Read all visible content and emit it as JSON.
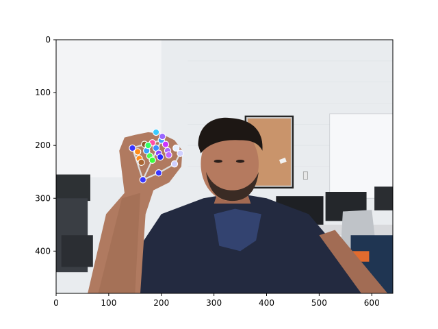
{
  "figure": {
    "image_width": 640,
    "image_height": 480,
    "x_ticks": [
      0,
      100,
      200,
      300,
      400,
      500,
      600
    ],
    "y_ticks": [
      0,
      100,
      200,
      300,
      400
    ],
    "xlim": [
      0,
      640
    ],
    "ylim": [
      480,
      0
    ],
    "y_axis_inverted": true
  },
  "scene": {
    "background": "office wall, corkboard, whiteboard, monitors",
    "subject": "person raising right hand with hand landmarks overlaid"
  },
  "hand_landmarks": {
    "points": [
      {
        "id": 0,
        "x": 165,
        "y": 265,
        "color": "#3a36ff"
      },
      {
        "id": 1,
        "x": 195,
        "y": 252,
        "color": "#3a36ff"
      },
      {
        "id": 2,
        "x": 225,
        "y": 235,
        "color": "#d0d0ff"
      },
      {
        "id": 3,
        "x": 236,
        "y": 215,
        "color": "#d0d0ff"
      },
      {
        "id": 4,
        "x": 228,
        "y": 205,
        "color": "#e6f0ff"
      },
      {
        "id": 5,
        "x": 145,
        "y": 205,
        "color": "#3a36ff"
      },
      {
        "id": 6,
        "x": 155,
        "y": 212,
        "color": "#ff8c1a"
      },
      {
        "id": 7,
        "x": 158,
        "y": 225,
        "color": "#ff8c1a"
      },
      {
        "id": 8,
        "x": 162,
        "y": 232,
        "color": "#aa6633"
      },
      {
        "id": 9,
        "x": 168,
        "y": 198,
        "color": "#8b5a2b"
      },
      {
        "id": 10,
        "x": 172,
        "y": 210,
        "color": "#3aa0ff"
      },
      {
        "id": 11,
        "x": 178,
        "y": 220,
        "color": "#4dff4d"
      },
      {
        "id": 12,
        "x": 183,
        "y": 228,
        "color": "#3aff3a"
      },
      {
        "id": 13,
        "x": 183,
        "y": 195,
        "color": "#ff4da6"
      },
      {
        "id": 14,
        "x": 190,
        "y": 205,
        "color": "#3a8dff"
      },
      {
        "id": 15,
        "x": 195,
        "y": 215,
        "color": "#8844ff"
      },
      {
        "id": 16,
        "x": 198,
        "y": 222,
        "color": "#2a2aff"
      },
      {
        "id": 17,
        "x": 200,
        "y": 190,
        "color": "#3aa0ff"
      },
      {
        "id": 18,
        "x": 208,
        "y": 198,
        "color": "#cc33ff"
      },
      {
        "id": 19,
        "x": 212,
        "y": 210,
        "color": "#aa66ff"
      },
      {
        "id": 20,
        "x": 214,
        "y": 218,
        "color": "#c266ff"
      },
      {
        "id": 21,
        "x": 175,
        "y": 200,
        "color": "#33ff66"
      },
      {
        "id": 22,
        "x": 190,
        "y": 175,
        "color": "#3acbff"
      },
      {
        "id": 23,
        "x": 202,
        "y": 183,
        "color": "#9966ff"
      }
    ],
    "connections": [
      [
        0,
        1
      ],
      [
        1,
        2
      ],
      [
        2,
        3
      ],
      [
        3,
        4
      ],
      [
        0,
        5
      ],
      [
        5,
        6
      ],
      [
        6,
        7
      ],
      [
        7,
        8
      ],
      [
        5,
        9
      ],
      [
        9,
        10
      ],
      [
        10,
        11
      ],
      [
        11,
        12
      ],
      [
        9,
        13
      ],
      [
        13,
        14
      ],
      [
        14,
        15
      ],
      [
        15,
        16
      ],
      [
        13,
        17
      ],
      [
        17,
        18
      ],
      [
        18,
        19
      ],
      [
        19,
        20
      ],
      [
        0,
        17
      ]
    ]
  }
}
